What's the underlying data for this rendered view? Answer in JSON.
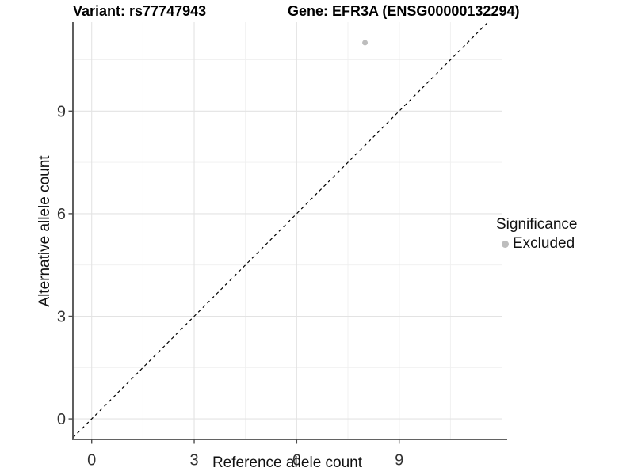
{
  "chart_data": {
    "type": "scatter",
    "title_parts": [
      "Variant: rs77747943",
      "Gene: EFR3A (ENSG00000132294)"
    ],
    "xlabel": "Reference allele count",
    "ylabel": "Alternative allele count",
    "xlim": [
      -0.55,
      12.0
    ],
    "ylim": [
      -0.6,
      11.6
    ],
    "xticks": [
      0,
      3,
      6,
      9
    ],
    "yticks": [
      0,
      3,
      6,
      9
    ],
    "x_minor_ticks": [
      1.5,
      4.5,
      7.5,
      10.5
    ],
    "y_minor_ticks": [
      1.5,
      4.5,
      7.5,
      10.5
    ],
    "grid": true,
    "series": [
      {
        "name": "Excluded",
        "color": "#bdbdbd",
        "point_radius": 3.5,
        "points": [
          {
            "x": 8,
            "y": 11
          }
        ]
      }
    ],
    "reference_line": {
      "type": "identity",
      "slope": 1,
      "intercept": 0,
      "linetype": "dashed",
      "color": "#000000"
    },
    "legend": {
      "position": "right",
      "title": "Significance",
      "items": [
        {
          "label": "Excluded",
          "color": "#bdbdbd"
        }
      ]
    },
    "colors": {
      "grid_major": "#e3e3e3",
      "grid_minor": "#efefef",
      "axis_line": "#4d4d4d",
      "tick_text": "#333333"
    }
  }
}
